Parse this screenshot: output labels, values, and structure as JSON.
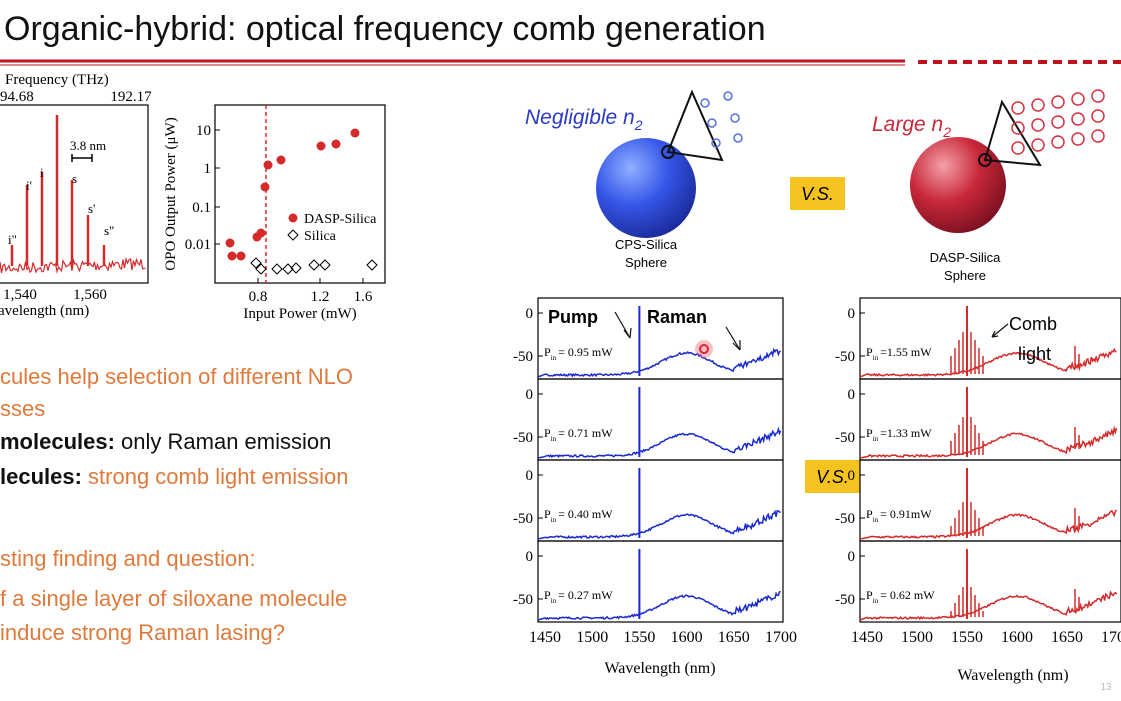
{
  "title": "Organic-hybrid:  optical frequency comb generation",
  "spectrum_figure": {
    "top_axis_label": "Frequency (THz)",
    "top_ticks": [
      94.68,
      192.17
    ],
    "peak_labels": [
      "i\"",
      "i'",
      "i",
      "s",
      "s'",
      "s\""
    ],
    "scale_label": "3.8 nm",
    "x_ticks": [
      "1,540",
      "1,560"
    ],
    "x_label": "avelength (nm)"
  },
  "opo_figure": {
    "y_label": "OPO Output Power (μW)",
    "y_ticks": [
      10,
      1,
      0.1,
      0.01
    ],
    "x_ticks": [
      0.8,
      1.2,
      1.6
    ],
    "x_label": "Input Power (mW)",
    "legend": [
      "DASP-Silica",
      "Silica"
    ]
  },
  "bullets": [
    [
      {
        "text": "cules help selection of different NLO",
        "style": "orange"
      }
    ],
    [
      {
        "text": "sses",
        "style": "orange"
      }
    ],
    [
      {
        "text": "molecules:",
        "style": "bold"
      },
      {
        "text": " only Raman emission",
        "style": "black"
      }
    ],
    [
      {
        "text": "lecules:",
        "style": "bold"
      },
      {
        "text": " strong comb light emission",
        "style": "orange"
      }
    ],
    [
      {
        "text": "sting finding and question:",
        "style": "orange"
      }
    ],
    [
      {
        "text": "f a single layer of siloxane molecule",
        "style": "orange"
      }
    ],
    [
      {
        "text": "induce strong Raman lasing?",
        "style": "orange"
      }
    ]
  ],
  "comparison": {
    "left": {
      "label": "Negligible n",
      "sub": "2",
      "sphere": [
        "CPS-Silica",
        "Sphere"
      ]
    },
    "right": {
      "label": "Large n",
      "sub": "2",
      "sphere": [
        "DASP-Silica",
        "Sphere"
      ]
    },
    "vs": "V.S.",
    "y_ticks": [
      0,
      -50
    ],
    "x_ticks": [
      1450,
      1500,
      1550,
      1600,
      1650,
      1700
    ],
    "x_label": "Wavelength (nm)",
    "pump_label": "Pump",
    "raman_label": "Raman",
    "comb_label": [
      "Comb",
      "light"
    ],
    "left_powers": [
      {
        "p": "P",
        "sub": "in",
        "value": "= 0.95 mW"
      },
      {
        "p": "P",
        "sub": "in",
        "value": "= 0.71 mW"
      },
      {
        "p": "P",
        "sub": "in",
        "value": "= 0.40 mW"
      },
      {
        "p": "P",
        "sub": "in",
        "value": "= 0.27 mW"
      }
    ],
    "right_powers": [
      {
        "p": "P",
        "sub": "in",
        "value": "=1.55 mW"
      },
      {
        "p": "P",
        "sub": "in",
        "value": "=1.33 mW"
      },
      {
        "p": "P",
        "sub": "in",
        "value": "= 0.91mW"
      },
      {
        "p": "P",
        "sub": "in",
        "value": "= 0.62 mW"
      }
    ]
  },
  "page_number": "13"
}
